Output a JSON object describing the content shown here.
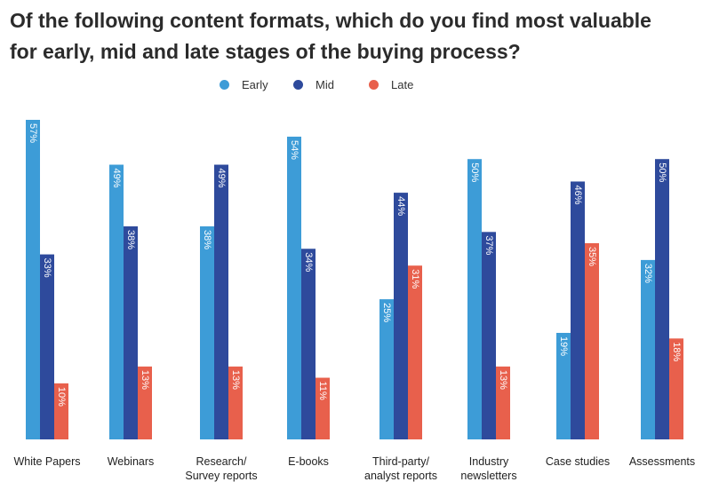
{
  "chart_data": {
    "type": "bar",
    "title_lines": [
      "Of the following content formats, which do you find most valuable",
      "for early, mid and late stages of the buying process?"
    ],
    "categories": [
      [
        "White Papers"
      ],
      [
        "Webinars"
      ],
      [
        "Research/",
        "Survey reports"
      ],
      [
        "E-books"
      ],
      [
        "Third-party/",
        "analyst reports"
      ],
      [
        "Industry",
        "newsletters"
      ],
      [
        "Case studies"
      ],
      [
        "Assessments"
      ]
    ],
    "series": [
      {
        "name": "Early",
        "color": "#3d9cd7",
        "values": [
          57,
          49,
          38,
          54,
          25,
          50,
          19,
          32
        ]
      },
      {
        "name": "Mid",
        "color": "#2e4a9c",
        "values": [
          33,
          38,
          49,
          34,
          44,
          37,
          46,
          50
        ]
      },
      {
        "name": "Late",
        "color": "#e8604c",
        "values": [
          10,
          13,
          13,
          11,
          31,
          13,
          35,
          18
        ]
      }
    ],
    "value_suffix": "%",
    "ylim": [
      0,
      57
    ],
    "legend_position": "top-center",
    "grid": false
  }
}
